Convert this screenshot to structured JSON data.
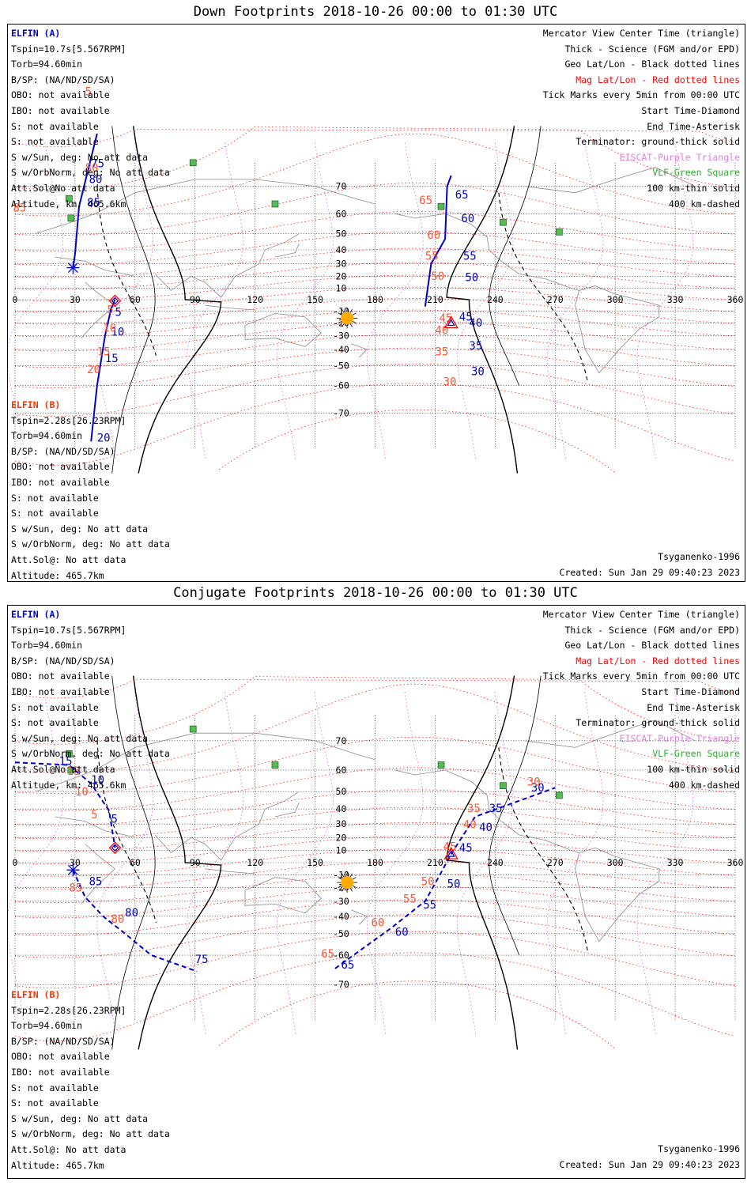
{
  "panels": [
    {
      "title": "Down Footprints 2018-10-26 00:00 to 01:30 UTC",
      "ccolor": [
        "#0000cc",
        "#ff5533"
      ],
      "sc_a": [
        "ELFIN (A)",
        "Tspin=10.7s[5.567RPM]",
        "Torb=94.60min",
        "B/SP: (NA/ND/SD/SA)",
        "OBO: not available",
        "IBO: not available",
        "S: not available",
        "S: not available",
        "S w/Sun, deg: No att data",
        "S w/OrbNorm, deg: No att data",
        "Att.Sol@No att data",
        "Altitude, km: 465.6km"
      ],
      "sc_b": [
        "ELFIN (B)",
        "Tspin=2.28s[26.23RPM]",
        "Torb=94.60min",
        "B/SP: (NA/ND/SD/SA)",
        "OBO: not available",
        "IBO: not available",
        "S: not available",
        "S: not available",
        "S w/Sun, deg: No att data",
        "S w/OrbNorm, deg: No att data",
        "Att.Sol@: No att data",
        "Altitude: 465.7km"
      ],
      "legend": [
        "Mercator View Center Time (triangle)",
        "Thick - Science (FGM and/or EPD)",
        "Geo Lat/Lon - Black dotted lines",
        "Mag Lat/Lon - Red dotted lines",
        "Tick Marks every 5min from 00:00 UTC",
        "Start Time-Diamond",
        "End Time-Asterisk",
        "Terminator: ground-thick solid",
        "EISCAT-Purple Triangle",
        "VLF-Green Square",
        "100 km-thin solid",
        "400 km-dashed"
      ],
      "model": "Tsyganenko-1996",
      "created": "Created: Sun Jan 29 09:40:23 2023",
      "xticks": [
        "0",
        "30",
        "60",
        "90",
        "120",
        "150",
        "180",
        "210",
        "240",
        "270",
        "300",
        "330",
        "360"
      ],
      "yticks": [
        "70",
        "60",
        "50",
        "40",
        "30",
        "20",
        "10",
        "-10",
        "-20",
        "-30",
        "-40",
        "-50",
        "-60",
        "-70"
      ],
      "vlf": [
        [
          89,
          76
        ],
        [
          27,
          66
        ],
        [
          28,
          58
        ],
        [
          130,
          64
        ],
        [
          213,
          63
        ],
        [
          244,
          56
        ],
        [
          272,
          51
        ]
      ],
      "sun": [
        166,
        -16
      ],
      "track_a": {
        "dashed": false,
        "points": [
          [
            41,
            81
          ],
          [
            32,
            63
          ],
          [
            30,
            37
          ],
          [
            29,
            27
          ]
        ],
        "ticks": [
          [
            38,
            75,
            "75"
          ],
          [
            37,
            71,
            "80"
          ],
          [
            36,
            63,
            "85"
          ]
        ],
        "mag": [
          [
            35,
            85,
            "5"
          ],
          [
            35,
            74,
            "80"
          ],
          [
            -1,
            61,
            "85"
          ]
        ],
        "start": null,
        "end": [
          29,
          27
        ]
      },
      "track_b": {
        "dashed": false,
        "points": [
          [
            50,
            0
          ],
          [
            48,
            -8
          ],
          [
            45,
            -30
          ],
          [
            41,
            -60
          ],
          [
            38,
            -77
          ]
        ],
        "ticks": [
          [
            50,
            -14,
            "5"
          ],
          [
            48,
            -30,
            "10"
          ],
          [
            45,
            -48,
            "15"
          ],
          [
            41,
            -77,
            "20"
          ]
        ],
        "mag": [
          [
            46,
            -12,
            "5"
          ],
          [
            44,
            -27,
            "10"
          ],
          [
            41,
            -44,
            "15"
          ],
          [
            36,
            -54,
            "20"
          ]
        ],
        "start": [
          50,
          -1
        ],
        "end": null
      },
      "track_c": {
        "dashed": false,
        "points": [
          [
            205,
            -6
          ],
          [
            208,
            30
          ],
          [
            215,
            47
          ],
          [
            216,
            70
          ],
          [
            218,
            73
          ]
        ],
        "ticks": [
          [
            228,
            -55,
            "30"
          ],
          [
            227,
            -40,
            "35"
          ],
          [
            227,
            -23,
            "40"
          ],
          [
            222,
            -18,
            "45"
          ],
          [
            225,
            16,
            "50"
          ],
          [
            224,
            33,
            "55"
          ],
          [
            223,
            56,
            "60"
          ],
          [
            220,
            66,
            "65"
          ]
        ],
        "mag": [
          [
            214,
            -60,
            "30"
          ],
          [
            210,
            -44,
            "35"
          ],
          [
            210,
            -29,
            "40"
          ],
          [
            212,
            -19,
            "45"
          ],
          [
            208,
            17,
            "50"
          ],
          [
            205,
            33,
            "55"
          ],
          [
            206,
            47,
            "60"
          ],
          [
            202,
            64,
            "65"
          ]
        ],
        "start": null,
        "end": null,
        "center": [
          218,
          -20
        ]
      },
      "terminator": "down"
    },
    {
      "title": "Conjugate Footprints 2018-10-26 00:00 to 01:30 UTC",
      "sc_a": [
        "ELFIN (A)",
        "Tspin=10.7s[5.567RPM]",
        "Torb=94.60min",
        "B/SP: (NA/ND/SD/SA)",
        "OBO: not available",
        "IBO: not available",
        "S: not available",
        "S: not available",
        "S w/Sun, deg: No att data",
        "S w/OrbNorm, deg: No att data",
        "Att.Sol@No att data",
        "Altitude, km: 465.6km"
      ],
      "sc_b": [
        "ELFIN (B)",
        "Tspin=2.28s[26.23RPM]",
        "Torb=94.60min",
        "B/SP: (NA/ND/SD/SA)",
        "OBO: not available",
        "IBO: not available",
        "S: not available",
        "S: not available",
        "S w/Sun, deg: No att data",
        "S w/OrbNorm, deg: No att data",
        "Att.Sol@: No att data",
        "Altitude: 465.7km"
      ],
      "legend": [
        "Mercator View Center Time (triangle)",
        "Thick - Science (FGM and/or EPD)",
        "Geo Lat/Lon - Black dotted lines",
        "Mag Lat/Lon - Red dotted lines",
        "Tick Marks every 5min from 00:00 UTC",
        "Start Time-Diamond",
        "End Time-Asterisk",
        "Terminator: ground-thick solid",
        "EISCAT-Purple Triangle",
        "VLF-Green Square",
        "100 km-thin solid",
        "400 km-dashed"
      ],
      "model": "Tsyganenko-1996",
      "created": "Created: Sun Jan 29 09:40:23 2023",
      "xticks": [
        "0",
        "30",
        "60",
        "90",
        "120",
        "150",
        "180",
        "210",
        "240",
        "270",
        "300",
        "330",
        "360"
      ],
      "yticks": [
        "70",
        "60",
        "50",
        "40",
        "30",
        "20",
        "10",
        "-10",
        "-20",
        "-30",
        "-40",
        "-50",
        "-60",
        "-70"
      ],
      "vlf": [
        [
          89,
          73
        ],
        [
          27,
          66
        ],
        [
          28,
          60
        ],
        [
          130,
          62
        ],
        [
          213,
          62
        ],
        [
          244,
          53
        ],
        [
          272,
          48
        ]
      ],
      "sun": [
        166,
        -16
      ],
      "track_a": {
        "dashed": true,
        "points": [
          [
            0,
            63
          ],
          [
            27,
            62
          ],
          [
            38,
            54
          ],
          [
            47,
            39
          ],
          [
            50,
            12
          ]
        ],
        "ticks": [
          [
            48,
            31,
            "5"
          ],
          [
            38,
            54,
            "10"
          ],
          [
            22,
            62,
            "15"
          ]
        ],
        "mag": [
          [
            38,
            34,
            "5"
          ],
          [
            30,
            48,
            "10"
          ],
          [
            26,
            58,
            "15"
          ]
        ],
        "start": [
          50,
          12
        ],
        "end": null
      },
      "track_b": {
        "dashed": true,
        "points": [
          [
            29,
            -6
          ],
          [
            35,
            -27
          ],
          [
            44,
            -40
          ],
          [
            55,
            -50
          ],
          [
            68,
            -60
          ],
          [
            91,
            -66
          ]
        ],
        "ticks": [
          [
            37,
            -18,
            "85"
          ],
          [
            55,
            -40,
            "80"
          ],
          [
            90,
            -63,
            "75"
          ]
        ],
        "mag": [
          [
            27,
            -23,
            "85"
          ],
          [
            48,
            -44,
            "80"
          ]
        ],
        "start": null,
        "end": [
          29,
          -6
        ]
      },
      "track_c": {
        "dashed": true,
        "points": [
          [
            160,
            -65
          ],
          [
            188,
            -47
          ],
          [
            205,
            -30
          ],
          [
            211,
            -14
          ],
          [
            218,
            7
          ],
          [
            230,
            35
          ],
          [
            270,
            52
          ]
        ],
        "ticks": [
          [
            163,
            -65,
            "65"
          ],
          [
            190,
            -51,
            "60"
          ],
          [
            204,
            -35,
            "55"
          ],
          [
            216,
            -20,
            "50"
          ],
          [
            222,
            9,
            "45"
          ],
          [
            232,
            25,
            "40"
          ],
          [
            237,
            38,
            "35"
          ],
          [
            258,
            50,
            "30"
          ]
        ],
        "mag": [
          [
            153,
            -61,
            "65"
          ],
          [
            178,
            -46,
            "60"
          ],
          [
            194,
            -31,
            "55"
          ],
          [
            203,
            -18,
            "50"
          ],
          [
            214,
            10,
            "45"
          ],
          [
            224,
            27,
            "40"
          ],
          [
            226,
            38,
            "35"
          ],
          [
            256,
            53,
            "30"
          ]
        ],
        "start": null,
        "end": null,
        "center": [
          218,
          7
        ]
      },
      "terminator": "conj"
    }
  ]
}
